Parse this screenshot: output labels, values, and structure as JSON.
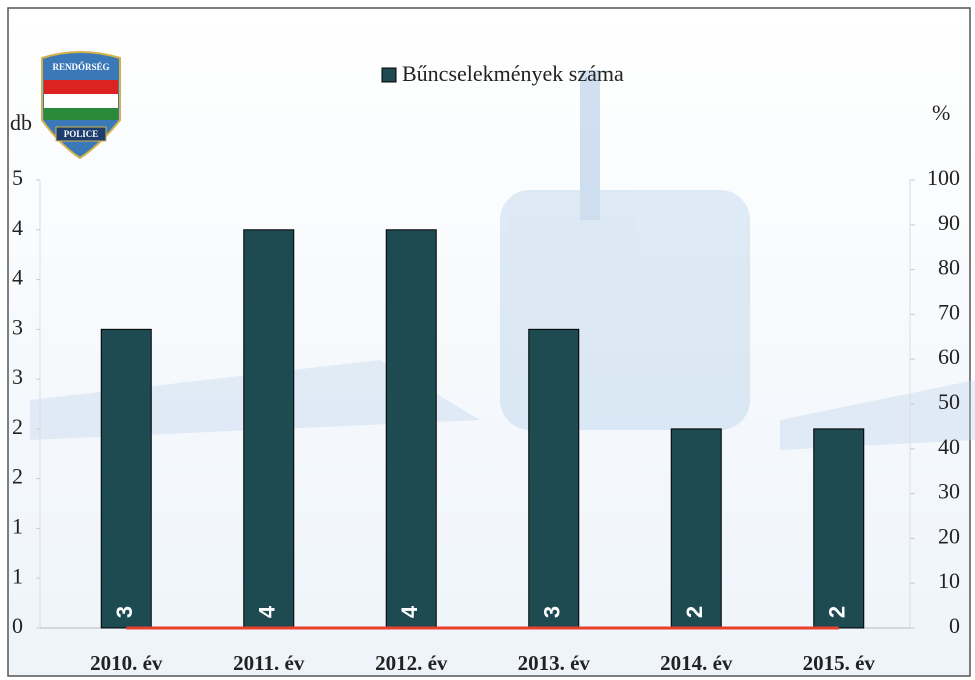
{
  "chart_data": {
    "type": "bar",
    "legend": "Bűncselekmények száma",
    "ylabel": "db",
    "y2label": "%",
    "logo": {
      "top": "RENDŐRSÉG",
      "bottom": "POLICE"
    },
    "categories": [
      "2010. év",
      "2011. év",
      "2012. év",
      "2013. év",
      "2014. év",
      "2015. év"
    ],
    "series": [
      {
        "name": "Bűncselekmények száma",
        "color": "#1e4a52",
        "values": [
          3,
          4,
          4,
          3,
          2,
          2
        ]
      },
      {
        "color": "#e8402a",
        "values": [
          0,
          0,
          0,
          0,
          0,
          0
        ],
        "axis": "y2",
        "type": "line"
      }
    ],
    "ylim": [
      0,
      4.5
    ],
    "yticks": [
      0,
      {
        "value": 0.5,
        "label": "1"
      },
      1,
      {
        "value": 1.5,
        "label": "2"
      },
      2,
      {
        "value": 2.5,
        "label": "3"
      },
      3,
      {
        "value": 3.5,
        "label": "4"
      },
      4,
      {
        "value": 4.5,
        "label": "5"
      }
    ],
    "y2lim": [
      0,
      100
    ],
    "y2ticks": [
      0,
      10,
      20,
      30,
      40,
      50,
      60,
      70,
      80,
      90,
      100
    ]
  }
}
